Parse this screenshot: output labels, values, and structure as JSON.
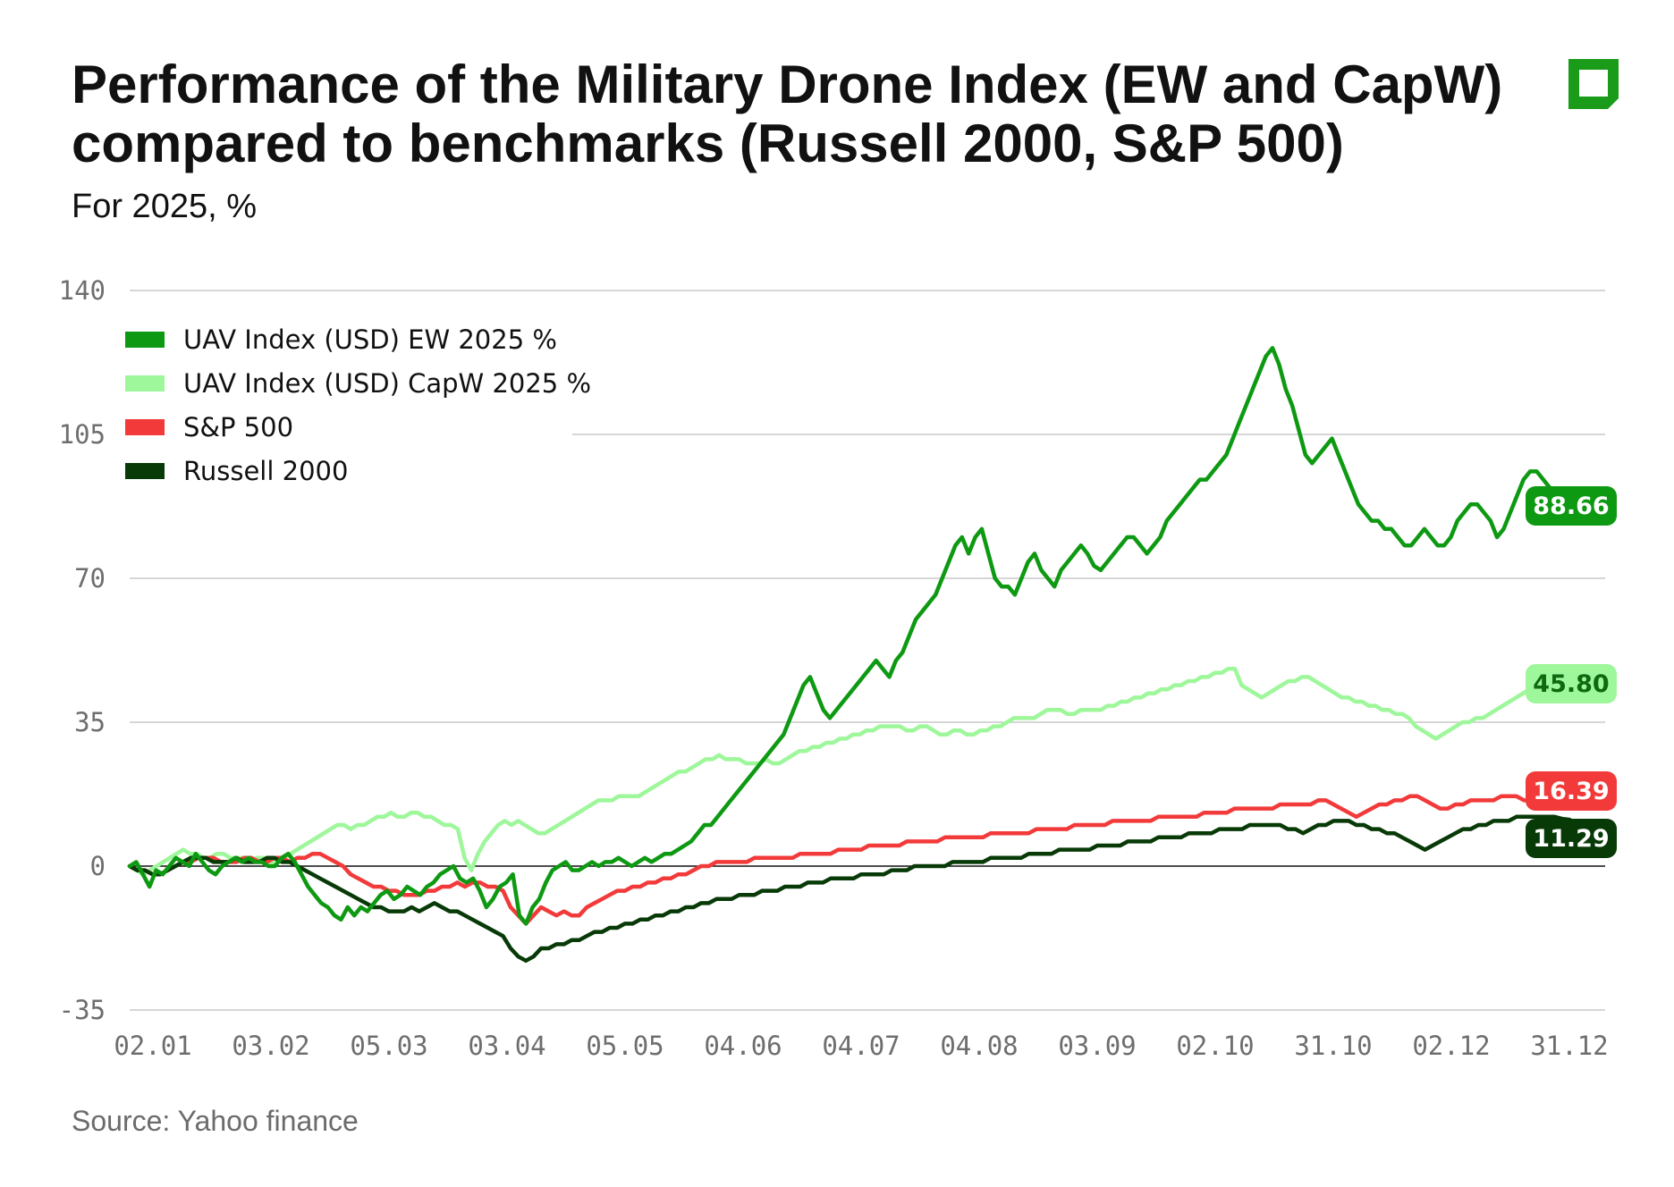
{
  "title": "Performance of the Military Drone Index (EW and CapW) compared to benchmarks (Russell 2000, S&P 500)",
  "subtitle": "For 2025, %",
  "source": "Source: Yahoo finance",
  "logo": {
    "icon": "brand-square-icon",
    "color": "#1a9c1a"
  },
  "chart_data": {
    "type": "line",
    "title": "Performance of the Military Drone Index (EW and CapW) compared to benchmarks (Russell 2000, S&P 500)",
    "subtitle": "For 2025, %",
    "xlabel": "",
    "ylabel": "",
    "ylim": [
      -35,
      140
    ],
    "yticks": [
      -35,
      0,
      35,
      70,
      105,
      140
    ],
    "ytick_labels": [
      "-35",
      "0",
      "35",
      "70",
      "105",
      "140"
    ],
    "x_tick_labels": [
      "02.01",
      "03.02",
      "05.03",
      "03.04",
      "05.05",
      "04.06",
      "04.07",
      "04.08",
      "03.09",
      "02.10",
      "31.10",
      "02.12",
      "31.12"
    ],
    "x_tick_index": [
      0,
      20,
      40,
      60,
      80,
      100,
      120,
      140,
      160,
      180,
      200,
      220,
      240
    ],
    "x_max_index": 250,
    "legend_position": "top-left",
    "series": [
      {
        "name": "UAV Index (USD) EW 2025 %",
        "color": "#0e9912",
        "label_text_color": "#ffffff",
        "end_label": "88.66",
        "values": [
          0,
          1,
          -2,
          -5,
          -1,
          -2,
          0,
          2,
          1,
          0,
          3,
          1,
          -1,
          -2,
          0,
          1,
          2,
          1,
          2,
          1,
          1,
          0,
          0,
          2,
          3,
          1,
          -2,
          -5,
          -7,
          -9,
          -10,
          -12,
          -13,
          -10,
          -12,
          -10,
          -11,
          -9,
          -7,
          -6,
          -8,
          -7,
          -5,
          -6,
          -7,
          -5,
          -4,
          -2,
          -1,
          0,
          -3,
          -4,
          -3,
          -6,
          -10,
          -8,
          -5,
          -4,
          -2,
          -12,
          -14,
          -10,
          -8,
          -4,
          -1,
          0,
          1,
          -1,
          -1,
          0,
          1,
          0,
          1,
          1,
          2,
          1,
          0,
          1,
          2,
          1,
          2,
          3,
          3,
          4,
          5,
          6,
          8,
          10,
          10,
          12,
          14,
          16,
          18,
          20,
          22,
          24,
          26,
          28,
          30,
          32,
          36,
          40,
          44,
          46,
          42,
          38,
          36,
          38,
          40,
          42,
          44,
          46,
          48,
          50,
          48,
          46,
          50,
          52,
          56,
          60,
          62,
          64,
          66,
          70,
          74,
          78,
          80,
          76,
          80,
          82,
          76,
          70,
          68,
          68,
          66,
          70,
          74,
          76,
          72,
          70,
          68,
          72,
          74,
          76,
          78,
          76,
          73,
          72,
          74,
          76,
          78,
          80,
          80,
          78,
          76,
          78,
          80,
          84,
          86,
          88,
          90,
          92,
          94,
          94,
          96,
          98,
          100,
          104,
          108,
          112,
          116,
          120,
          124,
          126,
          122,
          116,
          112,
          106,
          100,
          98,
          100,
          102,
          104,
          100,
          96,
          92,
          88,
          86,
          84,
          84,
          82,
          82,
          80,
          78,
          78,
          80,
          82,
          80,
          78,
          78,
          80,
          84,
          86,
          88,
          88,
          86,
          84,
          80,
          82,
          86,
          90,
          94,
          96,
          96,
          94,
          92,
          90,
          88,
          88.66
        ]
      },
      {
        "name": "UAV Index (USD) CapW 2025 %",
        "color": "#9ef79a",
        "label_text_color": "#0e6a10",
        "end_label": "45.80",
        "values": [
          0,
          -1,
          -2,
          -1,
          0,
          1,
          2,
          3,
          4,
          3,
          3,
          2,
          2,
          3,
          3,
          2,
          2,
          2,
          1,
          2,
          2,
          1,
          1,
          2,
          3,
          4,
          5,
          6,
          7,
          8,
          9,
          10,
          10,
          9,
          10,
          10,
          11,
          12,
          12,
          13,
          12,
          12,
          13,
          13,
          12,
          12,
          11,
          10,
          10,
          9,
          2,
          -1,
          3,
          6,
          8,
          10,
          11,
          10,
          11,
          10,
          9,
          8,
          8,
          9,
          10,
          11,
          12,
          13,
          14,
          15,
          16,
          16,
          16,
          17,
          17,
          17,
          17,
          18,
          19,
          20,
          21,
          22,
          23,
          23,
          24,
          25,
          26,
          26,
          27,
          26,
          26,
          26,
          25,
          25,
          25,
          26,
          25,
          25,
          26,
          27,
          28,
          28,
          29,
          29,
          30,
          30,
          31,
          31,
          32,
          32,
          33,
          33,
          34,
          34,
          34,
          34,
          33,
          33,
          34,
          34,
          33,
          32,
          32,
          33,
          33,
          32,
          32,
          33,
          33,
          34,
          34,
          35,
          36,
          36,
          36,
          36,
          37,
          38,
          38,
          38,
          37,
          37,
          38,
          38,
          38,
          38,
          39,
          39,
          40,
          40,
          41,
          41,
          42,
          42,
          43,
          43,
          44,
          44,
          45,
          45,
          46,
          46,
          47,
          47,
          48,
          48,
          44,
          43,
          42,
          41,
          42,
          43,
          44,
          45,
          45,
          46,
          46,
          45,
          44,
          43,
          42,
          41,
          41,
          40,
          40,
          39,
          39,
          38,
          38,
          37,
          37,
          36,
          34,
          33,
          32,
          31,
          32,
          33,
          34,
          35,
          35,
          36,
          36,
          37,
          38,
          39,
          40,
          41,
          42,
          43,
          44,
          44,
          45,
          45,
          45,
          45.8
        ]
      },
      {
        "name": "S&P 500",
        "color": "#f23a3a",
        "label_text_color": "#ffffff",
        "end_label": "16.39",
        "values": [
          0,
          -1,
          -1,
          -2,
          -2,
          -1,
          0,
          1,
          1,
          2,
          2,
          2,
          1,
          1,
          1,
          2,
          2,
          1,
          1,
          2,
          2,
          1,
          2,
          2,
          3,
          3,
          2,
          1,
          0,
          -2,
          -3,
          -4,
          -5,
          -5,
          -6,
          -6,
          -7,
          -7,
          -7,
          -6,
          -6,
          -5,
          -5,
          -4,
          -5,
          -4,
          -4,
          -5,
          -5,
          -6,
          -10,
          -12,
          -14,
          -12,
          -10,
          -11,
          -12,
          -11,
          -12,
          -12,
          -10,
          -9,
          -8,
          -7,
          -6,
          -6,
          -5,
          -5,
          -4,
          -4,
          -3,
          -3,
          -2,
          -2,
          -1,
          0,
          0,
          1,
          1,
          1,
          1,
          1,
          2,
          2,
          2,
          2,
          2,
          2,
          3,
          3,
          3,
          3,
          3,
          4,
          4,
          4,
          4,
          5,
          5,
          5,
          5,
          5,
          6,
          6,
          6,
          6,
          6,
          7,
          7,
          7,
          7,
          7,
          7,
          8,
          8,
          8,
          8,
          8,
          8,
          9,
          9,
          9,
          9,
          9,
          10,
          10,
          10,
          10,
          10,
          11,
          11,
          11,
          11,
          11,
          11,
          12,
          12,
          12,
          12,
          12,
          12,
          13,
          13,
          13,
          13,
          14,
          14,
          14,
          14,
          14,
          14,
          15,
          15,
          15,
          15,
          15,
          16,
          16,
          15,
          14,
          13,
          12,
          13,
          14,
          15,
          15,
          16,
          16,
          17,
          17,
          16,
          15,
          14,
          14,
          15,
          15,
          16,
          16,
          16,
          16,
          17,
          17,
          17,
          16,
          16,
          15,
          15,
          16,
          16,
          16.39
        ]
      },
      {
        "name": "Russell 2000",
        "color": "#083a08",
        "label_text_color": "#ffffff",
        "end_label": "11.29",
        "values": [
          0,
          -1,
          -1,
          -2,
          -2,
          -1,
          0,
          1,
          2,
          2,
          2,
          1,
          1,
          1,
          2,
          1,
          1,
          1,
          2,
          2,
          1,
          1,
          0,
          -1,
          -2,
          -3,
          -4,
          -5,
          -6,
          -7,
          -8,
          -9,
          -10,
          -10,
          -11,
          -11,
          -11,
          -10,
          -11,
          -10,
          -9,
          -10,
          -11,
          -11,
          -12,
          -13,
          -14,
          -15,
          -16,
          -17,
          -20,
          -22,
          -23,
          -22,
          -20,
          -20,
          -19,
          -19,
          -18,
          -18,
          -17,
          -16,
          -16,
          -15,
          -15,
          -14,
          -14,
          -13,
          -13,
          -12,
          -12,
          -11,
          -11,
          -10,
          -10,
          -9,
          -9,
          -8,
          -8,
          -8,
          -7,
          -7,
          -7,
          -6,
          -6,
          -6,
          -5,
          -5,
          -5,
          -4,
          -4,
          -4,
          -3,
          -3,
          -3,
          -3,
          -2,
          -2,
          -2,
          -2,
          -1,
          -1,
          -1,
          0,
          0,
          0,
          0,
          0,
          1,
          1,
          1,
          1,
          1,
          2,
          2,
          2,
          2,
          2,
          3,
          3,
          3,
          3,
          4,
          4,
          4,
          4,
          4,
          5,
          5,
          5,
          5,
          6,
          6,
          6,
          6,
          7,
          7,
          7,
          7,
          8,
          8,
          8,
          8,
          9,
          9,
          9,
          9,
          10,
          10,
          10,
          10,
          10,
          9,
          9,
          8,
          9,
          10,
          10,
          11,
          11,
          11,
          10,
          10,
          9,
          9,
          8,
          8,
          7,
          6,
          5,
          4,
          5,
          6,
          7,
          8,
          9,
          9,
          10,
          10,
          11,
          11,
          11,
          12,
          12,
          12,
          12,
          12,
          12,
          11.5,
          11.29
        ]
      }
    ]
  }
}
